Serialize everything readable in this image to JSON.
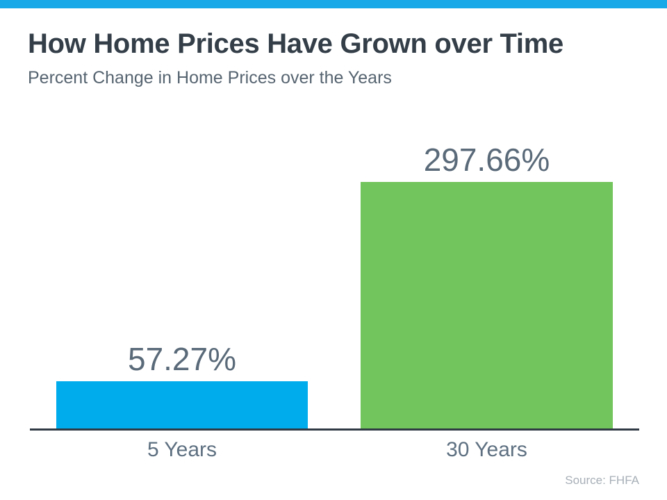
{
  "page": {
    "title": "How Home Prices Have Grown over Time",
    "subtitle": "Percent Change in Home Prices over the Years",
    "source": "Source: FHFA"
  },
  "colors": {
    "accent_bar": "#17A9E8",
    "bar_blue": "#00ACEC",
    "bar_green": "#72C45C",
    "title_text": "#333E48",
    "subtitle_text": "#566470",
    "value_label_text": "#5A6A79",
    "axis_label_text": "#5E7081",
    "axis_line": "#2F3A44",
    "source_text": "#A7AFB7"
  },
  "chart_data": {
    "type": "bar",
    "categories": [
      "5 Years",
      "30 Years"
    ],
    "values": [
      57.27,
      297.66
    ],
    "value_labels": [
      "57.27%",
      "297.66%"
    ],
    "bar_colors": [
      "#00ACEC",
      "#72C45C"
    ],
    "title": "How Home Prices Have Grown over Time",
    "subtitle": "Percent Change in Home Prices over the Years",
    "xlabel": "",
    "ylabel": "",
    "ylim": [
      0,
      297.66
    ],
    "grid": false,
    "legend": false,
    "annotations": [
      "Source: FHFA"
    ]
  }
}
